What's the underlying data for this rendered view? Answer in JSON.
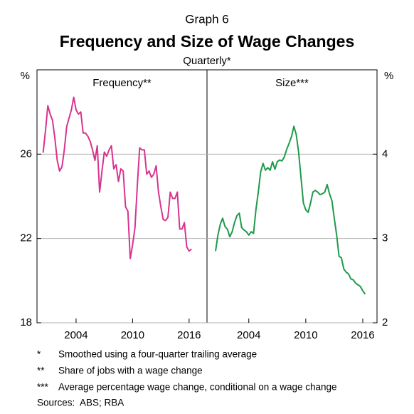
{
  "header": {
    "graph": "Graph 6",
    "title": "Frequency and Size of Wage Changes",
    "subtitle": "Quarterly*"
  },
  "chart_data": [
    {
      "type": "line",
      "title": "Frequency**",
      "ylabel": "%",
      "yaxis_side": "left",
      "color": "#d9338f",
      "grid": true,
      "xlim": [
        1999.85,
        2017.9
      ],
      "xticks": [
        2004,
        2010,
        2016
      ],
      "ylim": [
        18,
        30
      ],
      "yticks": [
        18,
        22,
        26
      ],
      "x": [
        2000.5,
        2000.75,
        2001,
        2001.25,
        2001.5,
        2001.75,
        2002,
        2002.25,
        2002.5,
        2002.75,
        2003,
        2003.25,
        2003.5,
        2003.75,
        2004,
        2004.25,
        2004.5,
        2004.75,
        2005,
        2005.25,
        2005.5,
        2005.75,
        2006,
        2006.25,
        2006.5,
        2006.75,
        2007,
        2007.25,
        2007.5,
        2007.75,
        2008,
        2008.25,
        2008.5,
        2008.75,
        2009,
        2009.25,
        2009.5,
        2009.75,
        2010,
        2010.25,
        2010.5,
        2010.75,
        2011,
        2011.25,
        2011.5,
        2011.75,
        2012,
        2012.25,
        2012.5,
        2012.75,
        2013,
        2013.25,
        2013.5,
        2013.75,
        2014,
        2014.25,
        2014.5,
        2014.75,
        2015,
        2015.25,
        2015.5,
        2015.75,
        2016,
        2016.25
      ],
      "values": [
        26.07,
        27.1,
        28.3,
        27.9,
        27.6,
        26.75,
        25.7,
        25.2,
        25.4,
        26.2,
        27.3,
        27.7,
        28.1,
        28.7,
        28.1,
        27.9,
        28.0,
        27.0,
        27.0,
        26.85,
        26.6,
        26.2,
        25.7,
        26.4,
        24.2,
        25.2,
        26.1,
        25.9,
        26.2,
        26.4,
        25.3,
        25.5,
        24.7,
        25.3,
        25.2,
        23.5,
        23.3,
        21.05,
        21.7,
        22.5,
        24.5,
        26.3,
        26.2,
        26.2,
        25.05,
        25.2,
        24.9,
        25.05,
        25.45,
        24.2,
        23.5,
        22.9,
        22.85,
        23.0,
        24.2,
        23.9,
        23.9,
        24.2,
        22.45,
        22.45,
        22.75,
        21.6,
        21.4,
        21.5
      ]
    },
    {
      "type": "line",
      "title": "Size***",
      "ylabel": "%",
      "yaxis_side": "right",
      "color": "#1f9a4b",
      "grid": true,
      "xlim": [
        1999.6,
        2017.5
      ],
      "xticks": [
        2004,
        2010,
        2016
      ],
      "ylim": [
        2,
        5
      ],
      "yticks": [
        2,
        3,
        4
      ],
      "x": [
        2000.5,
        2000.75,
        2001,
        2001.25,
        2001.5,
        2001.75,
        2002,
        2002.25,
        2002.5,
        2002.75,
        2003,
        2003.25,
        2003.5,
        2003.75,
        2004,
        2004.25,
        2004.5,
        2004.75,
        2005,
        2005.25,
        2005.5,
        2005.75,
        2006,
        2006.25,
        2006.5,
        2006.75,
        2007,
        2007.25,
        2007.5,
        2007.75,
        2008,
        2008.25,
        2008.5,
        2008.75,
        2009,
        2009.25,
        2009.5,
        2009.75,
        2010,
        2010.25,
        2010.5,
        2010.75,
        2011,
        2011.25,
        2011.5,
        2011.75,
        2012,
        2012.25,
        2012.5,
        2012.75,
        2013,
        2013.25,
        2013.5,
        2013.75,
        2014,
        2014.25,
        2014.5,
        2014.75,
        2015,
        2015.25,
        2015.5,
        2015.75,
        2016,
        2016.25
      ],
      "values": [
        2.85,
        3.04,
        3.17,
        3.24,
        3.14,
        3.11,
        3.02,
        3.08,
        3.19,
        3.27,
        3.3,
        3.13,
        3.1,
        3.08,
        3.04,
        3.08,
        3.06,
        3.34,
        3.55,
        3.79,
        3.89,
        3.81,
        3.84,
        3.81,
        3.91,
        3.82,
        3.91,
        3.93,
        3.92,
        3.97,
        4.06,
        4.13,
        4.21,
        4.33,
        4.23,
        4.02,
        3.72,
        3.42,
        3.34,
        3.31,
        3.42,
        3.55,
        3.57,
        3.55,
        3.52,
        3.53,
        3.55,
        3.64,
        3.53,
        3.45,
        3.24,
        3.04,
        2.79,
        2.77,
        2.64,
        2.6,
        2.58,
        2.52,
        2.51,
        2.47,
        2.45,
        2.43,
        2.38,
        2.34
      ]
    }
  ],
  "notes": [
    {
      "symbol": "*",
      "text": "Smoothed using a four-quarter trailing average"
    },
    {
      "symbol": "**",
      "text": "Share of jobs with a wage change"
    },
    {
      "symbol": "***",
      "text": "Average percentage wage change, conditional on a wage change"
    }
  ],
  "sources": {
    "label": "Sources:",
    "text": "ABS; RBA"
  }
}
